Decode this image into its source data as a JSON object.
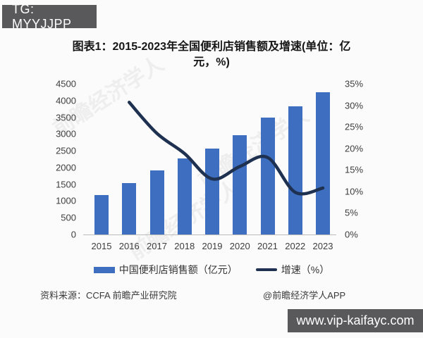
{
  "tg_badge": {
    "text": "TG: MYYJJPP"
  },
  "title": {
    "line1": "图表1：2015-2023年全国便利店销售额及增速(单位：亿",
    "line2": "元，%)"
  },
  "chart_data": {
    "type": "bar",
    "title": "图表1：2015-2023年全国便利店销售额及增速(单位：亿元，%)",
    "categories": [
      "2015",
      "2016",
      "2017",
      "2018",
      "2019",
      "2020",
      "2021",
      "2022",
      "2023"
    ],
    "series": [
      {
        "name": "中国便利店销售额（亿元）",
        "type": "bar",
        "axis": "left",
        "color": "#3E6EC0",
        "values": [
          1181,
          1543,
          1905,
          2264,
          2556,
          2961,
          3492,
          3834,
          4248
        ]
      },
      {
        "name": "增速（%）",
        "type": "line",
        "axis": "right",
        "color": "#1F3150",
        "values": [
          null,
          30.7,
          23.5,
          18.8,
          12.9,
          15.8,
          17.9,
          9.8,
          10.8
        ]
      }
    ],
    "left_axis": {
      "min": 0,
      "max": 4500,
      "ticks": [
        0,
        500,
        1000,
        1500,
        2000,
        2500,
        3000,
        3500,
        4000,
        4500
      ]
    },
    "right_axis": {
      "min": 0,
      "max": 35,
      "ticks": [
        "0%",
        "5%",
        "10%",
        "15%",
        "20%",
        "25%",
        "30%",
        "35%"
      ]
    },
    "grid": false,
    "legend_position": "bottom"
  },
  "source": {
    "left": "资料来源：CCFA 前瞻产业研究院",
    "right": "@前瞻经济学人APP"
  },
  "url_bar": {
    "text": "www.vip-kaifayc.com"
  },
  "watermark_text": "前瞻经济学人"
}
